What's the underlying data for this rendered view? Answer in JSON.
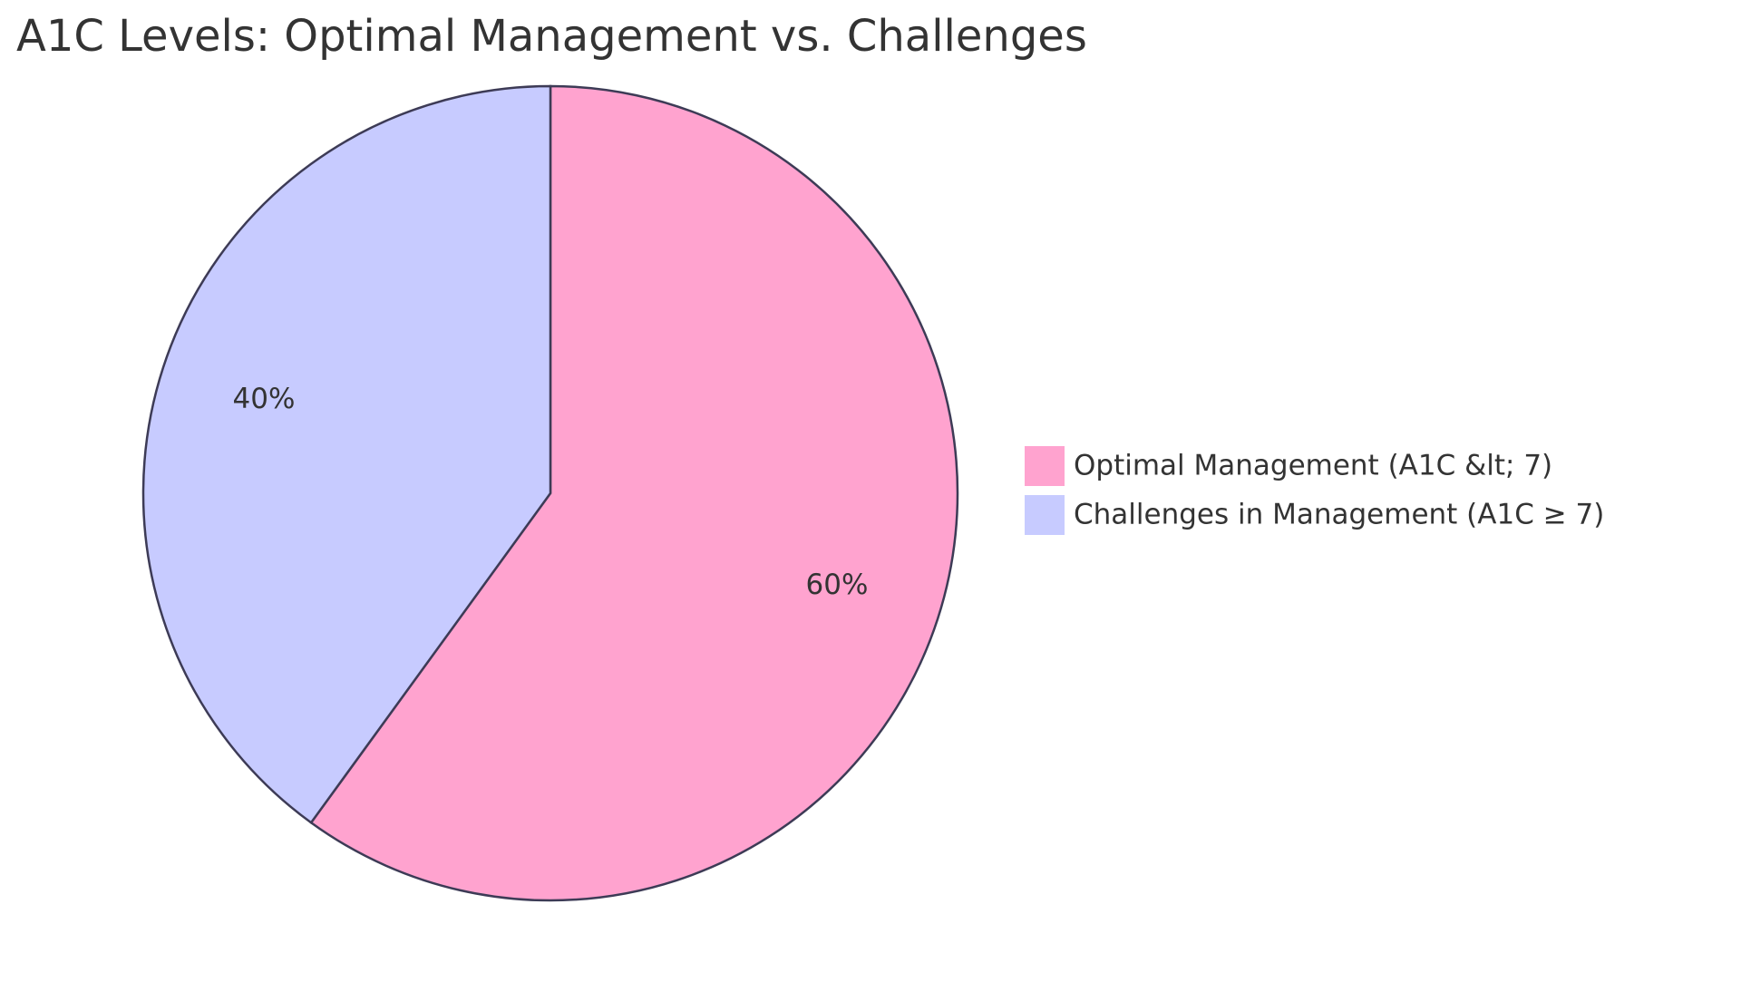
{
  "chart_data": {
    "type": "pie",
    "title": "A1C Levels: Optimal Management vs. Challenges",
    "categories": [
      "Optimal Management (A1C &lt; 7)",
      "Challenges in Management (A1C ≥ 7)"
    ],
    "values": [
      60,
      40
    ],
    "value_labels": [
      "60%",
      "40%"
    ],
    "colors": [
      "#ffa3cf",
      "#c7cbff"
    ],
    "legend": "right"
  }
}
